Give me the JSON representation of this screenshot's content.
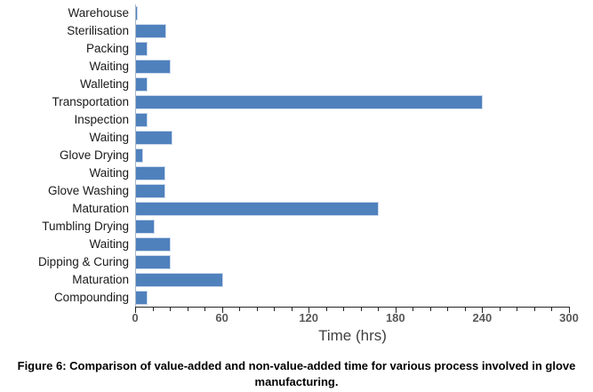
{
  "chart_data": {
    "type": "bar",
    "orientation": "horizontal",
    "title": "",
    "xlabel": "Time (hrs)",
    "categories": [
      "Warehouse",
      "Sterilisation",
      "Packing",
      "Waiting",
      "Walleting",
      "Transportation",
      "Inspection",
      "Waiting",
      "Glove Drying",
      "Waiting",
      "Glove Washing",
      "Maturation",
      "Tumbling Drying",
      "Waiting",
      "Dipping & Curing",
      "Maturation",
      "Compounding"
    ],
    "values": [
      1,
      21,
      8,
      24,
      8,
      240,
      8,
      25,
      5,
      20,
      20,
      168,
      13,
      24,
      24,
      60,
      8
    ],
    "xlim": [
      0,
      300
    ],
    "x_major_ticks": [
      0,
      60,
      120,
      180,
      240,
      300
    ],
    "x_major_tick_labels": [
      "0",
      "60",
      "120",
      "180",
      "240",
      "300"
    ],
    "x_minor_unit": 12,
    "grid": false,
    "legend": false,
    "bar_color": "#4f81bd",
    "bar_border_color": "#ccd9ec",
    "axis_line_color": "#262626",
    "y_axis_line_color": "#aab7c6",
    "tick_label_color": "#595959",
    "category_label_color": "#1a1a1a"
  },
  "caption": "Figure 6: Comparison of value-added and non-value-added time for various process involved in glove manufacturing."
}
